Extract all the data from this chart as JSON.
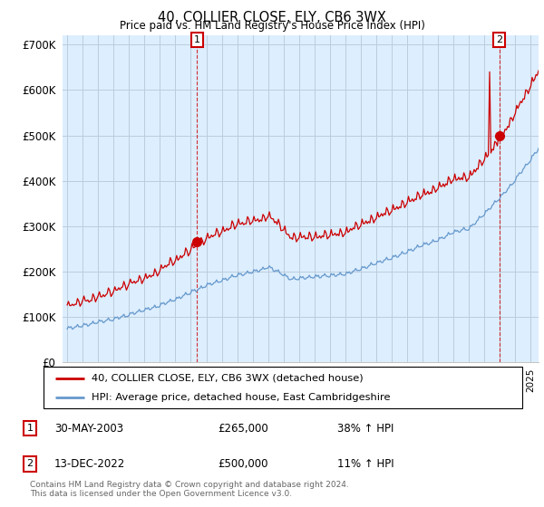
{
  "title": "40, COLLIER CLOSE, ELY, CB6 3WX",
  "subtitle": "Price paid vs. HM Land Registry's House Price Index (HPI)",
  "ytick_values": [
    0,
    100000,
    200000,
    300000,
    400000,
    500000,
    600000,
    700000
  ],
  "ylim": [
    0,
    720000
  ],
  "xlim_start": 1994.7,
  "xlim_end": 2025.5,
  "sale1_x": 2003.41,
  "sale1_y": 265000,
  "sale2_x": 2022.95,
  "sale2_y": 500000,
  "sale1_label": "30-MAY-2003",
  "sale1_price": "£265,000",
  "sale1_hpi": "38% ↑ HPI",
  "sale2_label": "13-DEC-2022",
  "sale2_price": "£500,000",
  "sale2_hpi": "11% ↑ HPI",
  "legend_line1": "40, COLLIER CLOSE, ELY, CB6 3WX (detached house)",
  "legend_line2": "HPI: Average price, detached house, East Cambridgeshire",
  "footer": "Contains HM Land Registry data © Crown copyright and database right 2024.\nThis data is licensed under the Open Government Licence v3.0.",
  "red_color": "#cc0000",
  "blue_color": "#6699cc",
  "bg_color": "#ddeeff",
  "grid_color": "#bbccdd"
}
